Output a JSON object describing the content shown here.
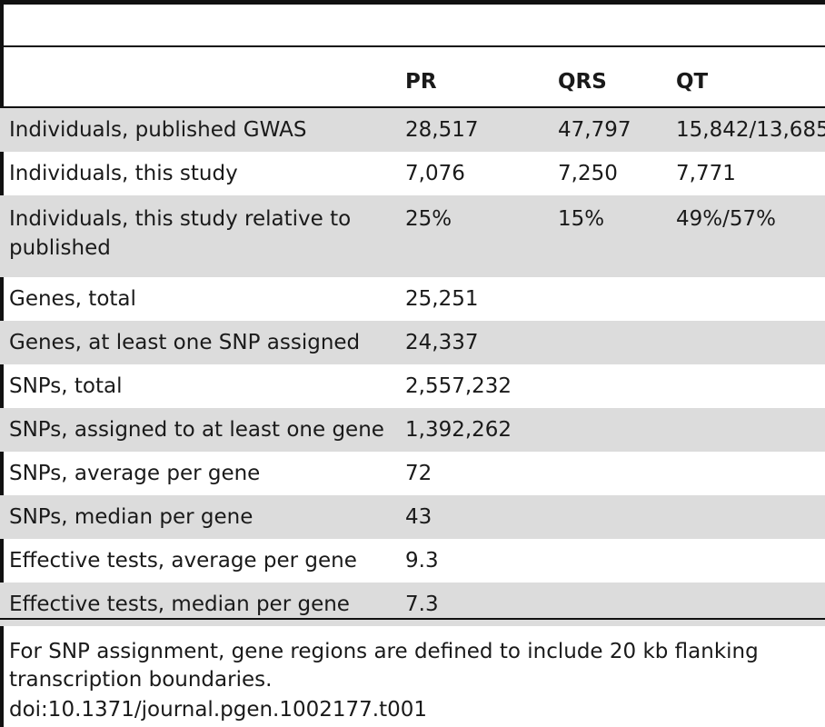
{
  "table": {
    "headers": [
      "",
      "PR",
      "QRS",
      "QT"
    ],
    "rows": [
      [
        "Individuals, published GWAS",
        "28,517",
        "47,797",
        "15,842/13,685"
      ],
      [
        "Individuals, this study",
        "7,076",
        "7,250",
        "7,771"
      ],
      [
        "Individuals, this study relative to published",
        "25%",
        "15%",
        "49%/57%"
      ],
      [
        "Genes, total",
        "25,251",
        "",
        ""
      ],
      [
        "Genes, at least one SNP assigned",
        "24,337",
        "",
        ""
      ],
      [
        "SNPs, total",
        "2,557,232",
        "",
        ""
      ],
      [
        "SNPs, assigned to at least one gene",
        "1,392,262",
        "",
        ""
      ],
      [
        "SNPs, average per gene",
        "72",
        "",
        ""
      ],
      [
        "SNPs, median per gene",
        "43",
        "",
        ""
      ],
      [
        "Effective tests, average per gene",
        "9.3",
        "",
        ""
      ],
      [
        "Effective tests, median per gene",
        "7.3",
        "",
        ""
      ]
    ]
  },
  "footnote": "For SNP assignment, gene regions are defined to include 20 kb flanking transcription boundaries.",
  "doi": "doi:10.1371/journal.pgen.1002177.t001"
}
